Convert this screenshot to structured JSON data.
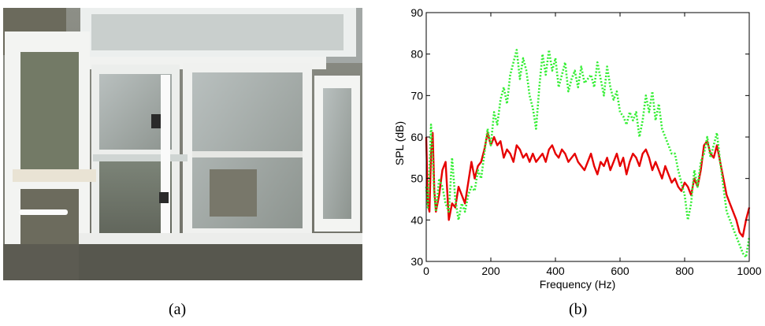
{
  "panels": {
    "a": {
      "caption": "(a)"
    },
    "b": {
      "caption": "(b)"
    }
  },
  "colors": {
    "background": "#ffffff",
    "axis": "#000000",
    "series_1": "#e60000",
    "series_2": "#33ee33"
  },
  "chart_data": {
    "type": "line",
    "title": "",
    "xlabel": "Frequency (Hz)",
    "ylabel": "SPL (dB)",
    "xlim": [
      0,
      1000
    ],
    "ylim": [
      30,
      90
    ],
    "xticks": [
      0,
      200,
      400,
      600,
      800,
      1000
    ],
    "yticks": [
      30,
      40,
      50,
      60,
      70,
      80,
      90
    ],
    "grid": false,
    "legend": "none",
    "series": [
      {
        "color": "#e60000",
        "line_style": "solid",
        "x": [
          0,
          5,
          10,
          15,
          20,
          25,
          30,
          40,
          50,
          60,
          70,
          80,
          90,
          100,
          110,
          120,
          130,
          140,
          150,
          160,
          170,
          180,
          190,
          200,
          210,
          220,
          230,
          240,
          250,
          260,
          270,
          280,
          290,
          300,
          310,
          320,
          330,
          340,
          350,
          360,
          370,
          380,
          390,
          400,
          410,
          420,
          430,
          440,
          450,
          460,
          470,
          480,
          490,
          500,
          510,
          520,
          530,
          540,
          550,
          560,
          570,
          580,
          590,
          600,
          610,
          620,
          630,
          640,
          650,
          660,
          670,
          680,
          690,
          700,
          710,
          720,
          730,
          740,
          750,
          760,
          770,
          780,
          790,
          800,
          810,
          820,
          830,
          840,
          850,
          860,
          870,
          880,
          890,
          900,
          910,
          920,
          930,
          940,
          950,
          960,
          970,
          980,
          990,
          1000
        ],
        "y": [
          60,
          44,
          42,
          56,
          61,
          47,
          42,
          46,
          52,
          54,
          40,
          44,
          43,
          48,
          46,
          44,
          49,
          54,
          50,
          53,
          54,
          57,
          61,
          58,
          60,
          58,
          59,
          55,
          57,
          56,
          54,
          58,
          57,
          55,
          56,
          54,
          56,
          54,
          55,
          56,
          54,
          57,
          58,
          56,
          55,
          57,
          56,
          54,
          55,
          56,
          54,
          53,
          52,
          54,
          56,
          53,
          51,
          54,
          53,
          55,
          52,
          54,
          56,
          53,
          55,
          51,
          54,
          56,
          55,
          53,
          56,
          57,
          55,
          52,
          54,
          52,
          50,
          53,
          51,
          49,
          50,
          48,
          47,
          49,
          48,
          46,
          50,
          48,
          52,
          58,
          59,
          56,
          55,
          58,
          54,
          50,
          46,
          44,
          42,
          40,
          37,
          36,
          40,
          43
        ]
      },
      {
        "color": "#33ee33",
        "line_style": "dotted",
        "x": [
          0,
          5,
          10,
          15,
          20,
          25,
          30,
          40,
          50,
          60,
          70,
          80,
          90,
          100,
          110,
          120,
          130,
          140,
          150,
          160,
          170,
          180,
          190,
          200,
          210,
          220,
          230,
          240,
          250,
          260,
          270,
          280,
          290,
          300,
          310,
          320,
          330,
          340,
          350,
          360,
          370,
          380,
          390,
          400,
          410,
          420,
          430,
          440,
          450,
          460,
          470,
          480,
          490,
          500,
          510,
          520,
          530,
          540,
          550,
          560,
          570,
          580,
          590,
          600,
          610,
          620,
          630,
          640,
          650,
          660,
          670,
          680,
          690,
          700,
          710,
          720,
          730,
          740,
          750,
          760,
          770,
          780,
          790,
          800,
          810,
          820,
          830,
          840,
          850,
          860,
          870,
          880,
          890,
          900,
          910,
          920,
          930,
          940,
          950,
          960,
          970,
          980,
          990,
          1000
        ],
        "y": [
          48,
          43,
          52,
          63,
          55,
          46,
          42,
          50,
          48,
          44,
          42,
          55,
          45,
          40,
          44,
          42,
          46,
          48,
          47,
          52,
          50,
          56,
          62,
          58,
          66,
          63,
          69,
          72,
          68,
          75,
          78,
          81,
          74,
          79,
          76,
          70,
          67,
          62,
          72,
          80,
          75,
          81,
          76,
          79,
          72,
          75,
          78,
          71,
          74,
          76,
          72,
          77,
          73,
          74,
          75,
          72,
          78,
          74,
          70,
          77,
          72,
          69,
          71,
          66,
          65,
          63,
          66,
          64,
          66,
          60,
          64,
          70,
          66,
          71,
          64,
          68,
          62,
          60,
          58,
          56,
          56,
          52,
          49,
          46,
          40,
          44,
          52,
          48,
          54,
          56,
          60,
          55,
          58,
          61,
          54,
          48,
          42,
          40,
          38,
          36,
          34,
          32,
          31,
          36
        ]
      }
    ]
  }
}
